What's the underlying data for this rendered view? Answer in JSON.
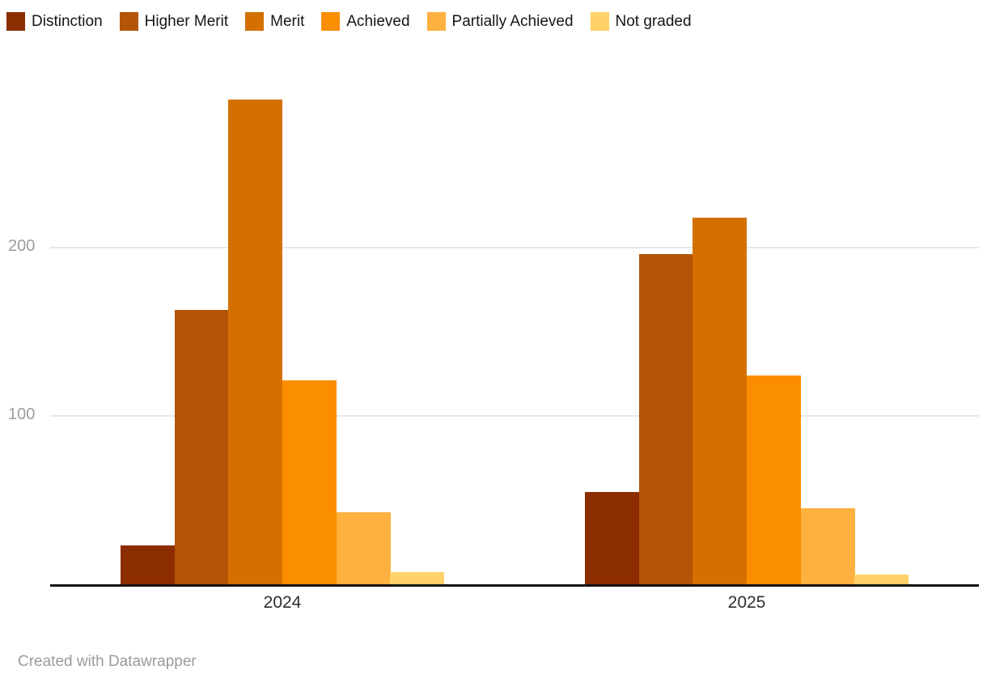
{
  "chart_data": {
    "type": "bar",
    "categories": [
      "2024",
      "2025"
    ],
    "series": [
      {
        "name": "Distinction",
        "color": "#8c2d00",
        "values": [
          23,
          55
        ]
      },
      {
        "name": "Higher Merit",
        "color": "#b35406",
        "values": [
          163,
          196
        ]
      },
      {
        "name": "Merit",
        "color": "#d47000",
        "values": [
          288,
          218
        ]
      },
      {
        "name": "Achieved",
        "color": "#fa8d00",
        "values": [
          121,
          124
        ]
      },
      {
        "name": "Partially Achieved",
        "color": "#feb13f",
        "values": [
          43,
          45
        ]
      },
      {
        "name": "Not graded",
        "color": "#ffd166",
        "values": [
          7,
          6
        ]
      }
    ],
    "title": "",
    "xlabel": "",
    "ylabel": "",
    "ylim": [
      0,
      300
    ],
    "yticks": [
      100,
      200
    ],
    "grid": true,
    "legend_position": "top",
    "attribution": "Created with Datawrapper"
  },
  "colors": {
    "background": "#ffffff",
    "gridline": "#e7e7e7",
    "axis_line": "#141414",
    "tick_label": "#9d9d9d",
    "category_label": "#2e2e2e",
    "legend_label": "#161616",
    "attribution": "#9b9b9b"
  }
}
